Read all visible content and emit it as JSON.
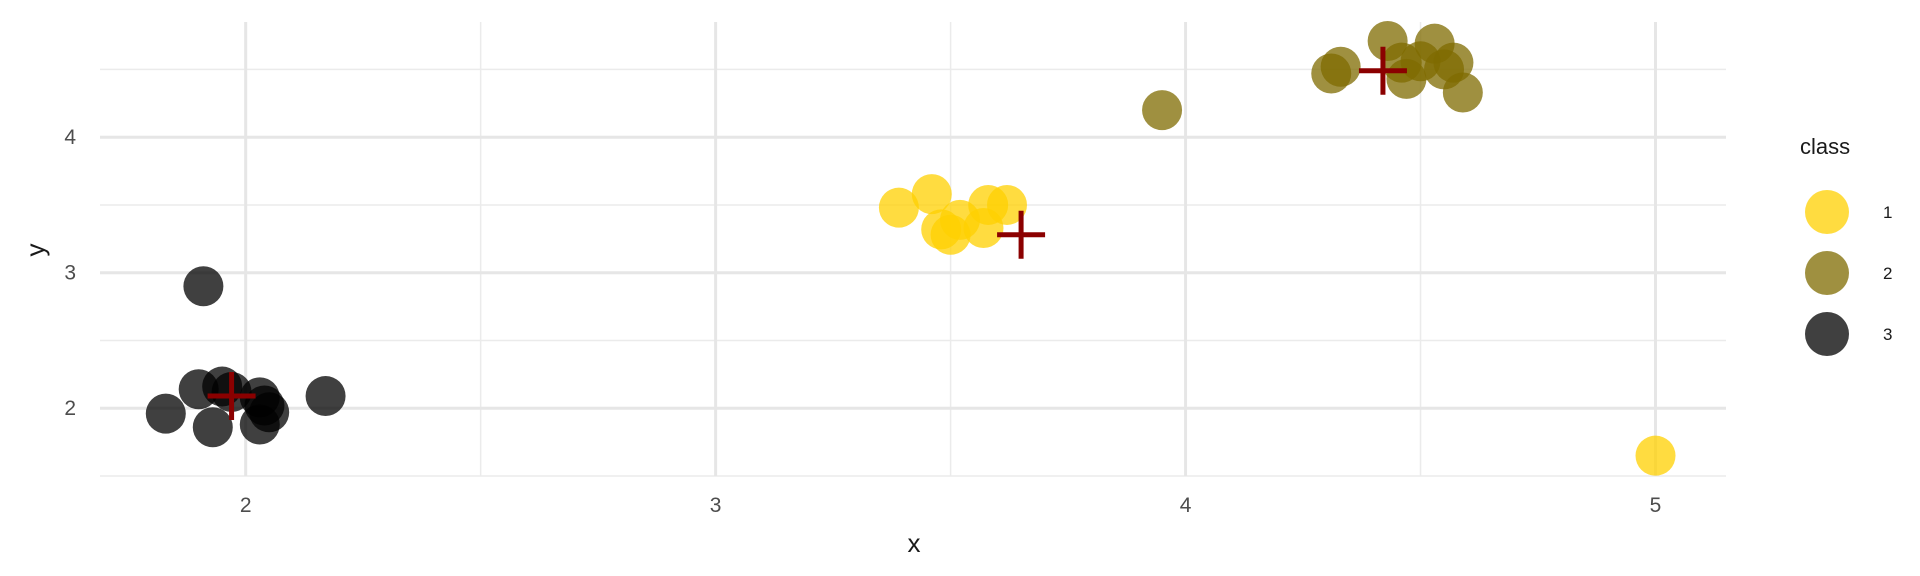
{
  "chart_data": {
    "type": "scatter",
    "title": "",
    "xlabel": "x",
    "ylabel": "y",
    "xlim": [
      1.69,
      5.15
    ],
    "ylim": [
      1.5,
      4.85
    ],
    "xticks": [
      "2",
      "3",
      "4",
      "5"
    ],
    "yticks": [
      "2",
      "3",
      "4"
    ],
    "grid": true,
    "legend": {
      "title": "class",
      "placement": "right",
      "entries": [
        {
          "label": "1",
          "color": "#FFD000"
        },
        {
          "label": "2",
          "color": "#7F6B00"
        },
        {
          "label": "3",
          "color": "#000000"
        }
      ]
    },
    "series": [
      {
        "name": "1",
        "color": "#FFD000",
        "points": [
          {
            "x": 3.39,
            "y": 3.48
          },
          {
            "x": 3.46,
            "y": 3.58
          },
          {
            "x": 3.48,
            "y": 3.32
          },
          {
            "x": 3.5,
            "y": 3.28
          },
          {
            "x": 3.52,
            "y": 3.39
          },
          {
            "x": 3.57,
            "y": 3.33
          },
          {
            "x": 3.58,
            "y": 3.5
          },
          {
            "x": 3.62,
            "y": 3.5
          },
          {
            "x": 5.0,
            "y": 1.65
          }
        ]
      },
      {
        "name": "2",
        "color": "#7F6B00",
        "points": [
          {
            "x": 3.95,
            "y": 4.2
          },
          {
            "x": 4.31,
            "y": 4.47
          },
          {
            "x": 4.33,
            "y": 4.52
          },
          {
            "x": 4.43,
            "y": 4.71
          },
          {
            "x": 4.46,
            "y": 4.55
          },
          {
            "x": 4.47,
            "y": 4.43
          },
          {
            "x": 4.5,
            "y": 4.56
          },
          {
            "x": 4.53,
            "y": 4.69
          },
          {
            "x": 4.55,
            "y": 4.5
          },
          {
            "x": 4.57,
            "y": 4.55
          },
          {
            "x": 4.59,
            "y": 4.33
          }
        ]
      },
      {
        "name": "3",
        "color": "#000000",
        "points": [
          {
            "x": 1.83,
            "y": 1.96
          },
          {
            "x": 1.9,
            "y": 2.14
          },
          {
            "x": 1.91,
            "y": 2.9
          },
          {
            "x": 1.93,
            "y": 1.86
          },
          {
            "x": 1.95,
            "y": 2.16
          },
          {
            "x": 1.97,
            "y": 2.12
          },
          {
            "x": 2.03,
            "y": 2.08
          },
          {
            "x": 2.03,
            "y": 1.88
          },
          {
            "x": 2.04,
            "y": 2.02
          },
          {
            "x": 2.05,
            "y": 1.97
          },
          {
            "x": 2.17,
            "y": 2.09
          }
        ]
      }
    ],
    "centroids": [
      {
        "x": 3.65,
        "y": 3.28,
        "color": "#8B0000"
      },
      {
        "x": 4.42,
        "y": 4.49,
        "color": "#8B0000"
      },
      {
        "x": 1.97,
        "y": 2.09,
        "color": "#8B0000"
      }
    ]
  }
}
